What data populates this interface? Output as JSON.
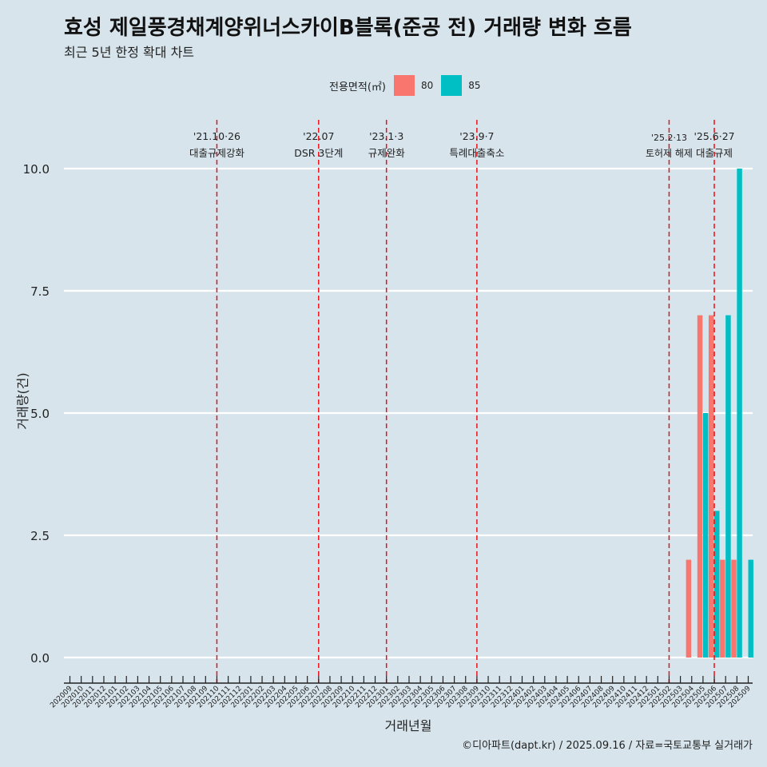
{
  "title": "효성 제일풍경채계양위너스카이B블록(준공 전) 거래량 변화 흐름",
  "subtitle": "최근 5년 한정 확대 차트",
  "caption": "©디아파트(dapt.kr) / 2025.09.16 / 자료=국토교통부 실거래가",
  "legend": {
    "title": "전용면적(㎡)",
    "items": [
      {
        "label": "80",
        "color": "#f8766d"
      },
      {
        "label": "85",
        "color": "#00bfc4"
      }
    ]
  },
  "chart_data": {
    "type": "bar",
    "xlabel": "거래년월",
    "ylabel": "거래량(건)",
    "ylim": [
      0,
      10
    ],
    "yticks": [
      "0.0",
      "2.5",
      "5.0",
      "7.5",
      "10.0"
    ],
    "categories": [
      "202009",
      "202010",
      "202011",
      "202012",
      "202101",
      "202102",
      "202103",
      "202104",
      "202105",
      "202106",
      "202107",
      "202108",
      "202109",
      "202110",
      "202111",
      "202112",
      "202201",
      "202202",
      "202203",
      "202204",
      "202205",
      "202206",
      "202207",
      "202208",
      "202209",
      "202210",
      "202211",
      "202212",
      "202301",
      "202302",
      "202303",
      "202304",
      "202305",
      "202306",
      "202307",
      "202308",
      "202309",
      "202310",
      "202311",
      "202312",
      "202401",
      "202402",
      "202403",
      "202404",
      "202405",
      "202406",
      "202407",
      "202408",
      "202409",
      "202410",
      "202411",
      "202412",
      "202501",
      "202502",
      "202503",
      "202504",
      "202505",
      "202506",
      "202507",
      "202508",
      "202509"
    ],
    "series": [
      {
        "name": "80",
        "color": "#f8766d",
        "values": [
          0,
          0,
          0,
          0,
          0,
          0,
          0,
          0,
          0,
          0,
          0,
          0,
          0,
          0,
          0,
          0,
          0,
          0,
          0,
          0,
          0,
          0,
          0,
          0,
          0,
          0,
          0,
          0,
          0,
          0,
          0,
          0,
          0,
          0,
          0,
          0,
          0,
          0,
          0,
          0,
          0,
          0,
          0,
          0,
          0,
          0,
          0,
          0,
          0,
          0,
          0,
          0,
          0,
          0,
          0,
          2,
          7,
          7,
          2,
          2,
          0
        ]
      },
      {
        "name": "85",
        "color": "#00bfc4",
        "values": [
          0,
          0,
          0,
          0,
          0,
          0,
          0,
          0,
          0,
          0,
          0,
          0,
          0,
          0,
          0,
          0,
          0,
          0,
          0,
          0,
          0,
          0,
          0,
          0,
          0,
          0,
          0,
          0,
          0,
          0,
          0,
          0,
          0,
          0,
          0,
          0,
          0,
          0,
          0,
          0,
          0,
          0,
          0,
          0,
          0,
          0,
          0,
          0,
          0,
          0,
          0,
          0,
          0,
          0,
          0,
          0,
          5,
          3,
          7,
          10,
          2
        ]
      }
    ],
    "events": [
      {
        "month": "202110",
        "date": "'21.10·26",
        "label": "대출규제강화"
      },
      {
        "month": "202207",
        "date": "'22.07",
        "label": "DSR 3단계"
      },
      {
        "month": "202301",
        "date": "'23.1·3",
        "label": "규제완화"
      },
      {
        "month": "202309",
        "date": "'23.9·7",
        "label": "특례대출축소"
      },
      {
        "month": "202502",
        "date": "'25.2·13",
        "label": "토허제 해제"
      },
      {
        "month": "202506",
        "date": "'25.6·27",
        "label": "대출규제"
      }
    ]
  }
}
